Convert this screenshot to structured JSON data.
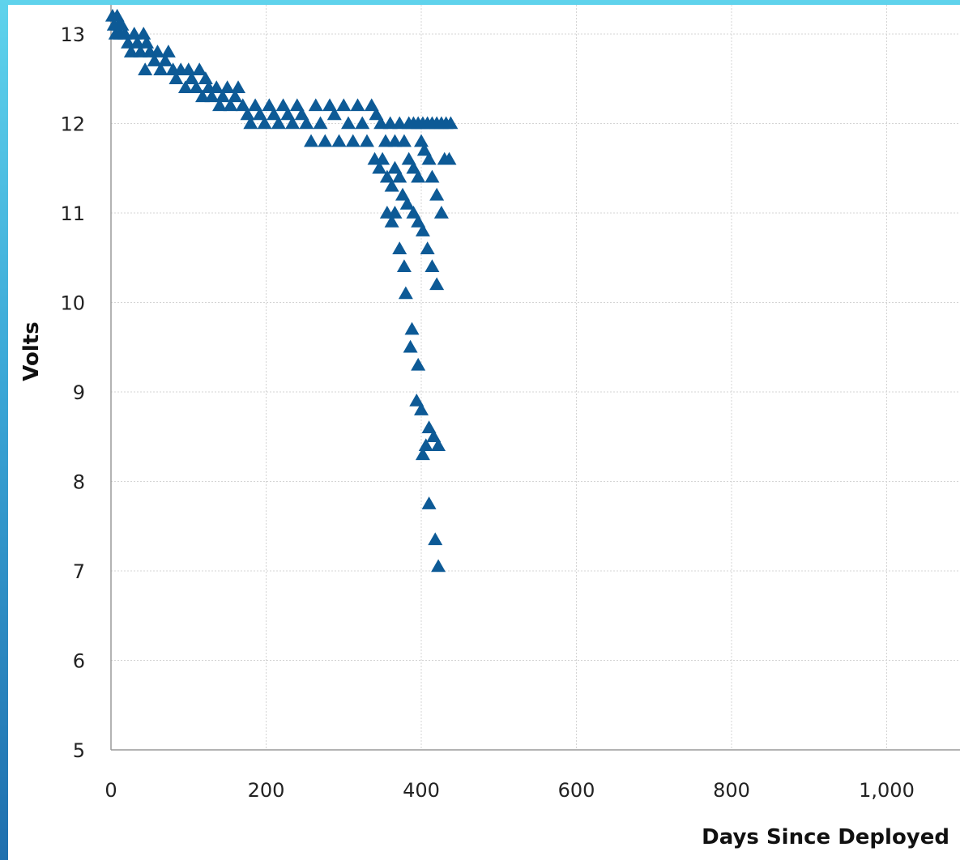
{
  "chart_data": {
    "type": "scatter",
    "xlabel": "Days Since Deployed",
    "ylabel": "Volts",
    "xlim": [
      0,
      1090
    ],
    "ylim": [
      5,
      13.3
    ],
    "x_ticks": [
      0,
      200,
      400,
      600,
      800,
      1000
    ],
    "x_tick_labels": [
      "0",
      "200",
      "400",
      "600",
      "800",
      "1,000"
    ],
    "y_ticks": [
      5,
      6,
      7,
      8,
      9,
      10,
      11,
      12,
      13
    ],
    "y_tick_labels": [
      "5",
      "6",
      "7",
      "8",
      "9",
      "10",
      "11",
      "12",
      "13"
    ],
    "grid": true,
    "marker": "triangle",
    "color": "#0d5a96",
    "series": [
      {
        "points": [
          [
            2,
            13.2
          ],
          [
            4,
            13.1
          ],
          [
            6,
            13.0
          ],
          [
            8,
            13.2
          ],
          [
            10,
            13.1
          ],
          [
            12,
            13.0
          ],
          [
            14,
            13.1
          ],
          [
            18,
            13.0
          ],
          [
            22,
            12.9
          ],
          [
            26,
            12.8
          ],
          [
            30,
            13.0
          ],
          [
            34,
            12.9
          ],
          [
            38,
            12.8
          ],
          [
            42,
            13.0
          ],
          [
            46,
            12.9
          ],
          [
            50,
            12.8
          ],
          [
            44,
            12.6
          ],
          [
            56,
            12.7
          ],
          [
            60,
            12.8
          ],
          [
            64,
            12.6
          ],
          [
            70,
            12.7
          ],
          [
            74,
            12.8
          ],
          [
            80,
            12.6
          ],
          [
            84,
            12.5
          ],
          [
            90,
            12.6
          ],
          [
            96,
            12.4
          ],
          [
            100,
            12.6
          ],
          [
            104,
            12.5
          ],
          [
            110,
            12.4
          ],
          [
            114,
            12.6
          ],
          [
            118,
            12.3
          ],
          [
            122,
            12.5
          ],
          [
            126,
            12.4
          ],
          [
            130,
            12.3
          ],
          [
            136,
            12.4
          ],
          [
            140,
            12.2
          ],
          [
            144,
            12.3
          ],
          [
            150,
            12.4
          ],
          [
            154,
            12.2
          ],
          [
            160,
            12.3
          ],
          [
            164,
            12.4
          ],
          [
            170,
            12.2
          ],
          [
            176,
            12.1
          ],
          [
            180,
            12.0
          ],
          [
            186,
            12.2
          ],
          [
            192,
            12.1
          ],
          [
            198,
            12.0
          ],
          [
            204,
            12.2
          ],
          [
            210,
            12.1
          ],
          [
            216,
            12.0
          ],
          [
            222,
            12.2
          ],
          [
            228,
            12.1
          ],
          [
            234,
            12.0
          ],
          [
            240,
            12.2
          ],
          [
            246,
            12.1
          ],
          [
            252,
            12.0
          ],
          [
            258,
            11.8
          ],
          [
            264,
            12.2
          ],
          [
            270,
            12.0
          ],
          [
            276,
            11.8
          ],
          [
            282,
            12.2
          ],
          [
            288,
            12.1
          ],
          [
            294,
            11.8
          ],
          [
            300,
            12.2
          ],
          [
            306,
            12.0
          ],
          [
            312,
            11.8
          ],
          [
            318,
            12.2
          ],
          [
            324,
            12.0
          ],
          [
            330,
            11.8
          ],
          [
            336,
            12.2
          ],
          [
            342,
            12.1
          ],
          [
            348,
            12.0
          ],
          [
            354,
            11.8
          ],
          [
            360,
            12.0
          ],
          [
            366,
            11.8
          ],
          [
            372,
            12.0
          ],
          [
            378,
            11.8
          ],
          [
            384,
            12.0
          ],
          [
            390,
            12.0
          ],
          [
            396,
            12.0
          ],
          [
            402,
            12.0
          ],
          [
            408,
            12.0
          ],
          [
            414,
            12.0
          ],
          [
            420,
            12.0
          ],
          [
            426,
            12.0
          ],
          [
            432,
            12.0
          ],
          [
            438,
            12.0
          ],
          [
            340,
            11.6
          ],
          [
            346,
            11.5
          ],
          [
            350,
            11.6
          ],
          [
            356,
            11.4
          ],
          [
            362,
            11.3
          ],
          [
            366,
            11.5
          ],
          [
            372,
            11.4
          ],
          [
            376,
            11.2
          ],
          [
            382,
            11.1
          ],
          [
            356,
            11.0
          ],
          [
            362,
            10.9
          ],
          [
            366,
            11.0
          ],
          [
            384,
            11.6
          ],
          [
            390,
            11.5
          ],
          [
            396,
            11.4
          ],
          [
            400,
            11.8
          ],
          [
            404,
            11.7
          ],
          [
            410,
            11.6
          ],
          [
            414,
            11.4
          ],
          [
            420,
            11.2
          ],
          [
            426,
            11.0
          ],
          [
            430,
            11.6
          ],
          [
            436,
            11.6
          ],
          [
            390,
            11.0
          ],
          [
            396,
            10.9
          ],
          [
            402,
            10.8
          ],
          [
            408,
            10.6
          ],
          [
            414,
            10.4
          ],
          [
            420,
            10.2
          ],
          [
            372,
            10.6
          ],
          [
            378,
            10.4
          ],
          [
            380,
            10.1
          ],
          [
            388,
            9.7
          ],
          [
            386,
            9.5
          ],
          [
            396,
            9.3
          ],
          [
            394,
            8.9
          ],
          [
            400,
            8.8
          ],
          [
            402,
            8.3
          ],
          [
            406,
            8.4
          ],
          [
            410,
            8.6
          ],
          [
            416,
            8.5
          ],
          [
            422,
            8.4
          ],
          [
            410,
            7.75
          ],
          [
            418,
            7.35
          ],
          [
            422,
            7.05
          ]
        ]
      }
    ]
  }
}
